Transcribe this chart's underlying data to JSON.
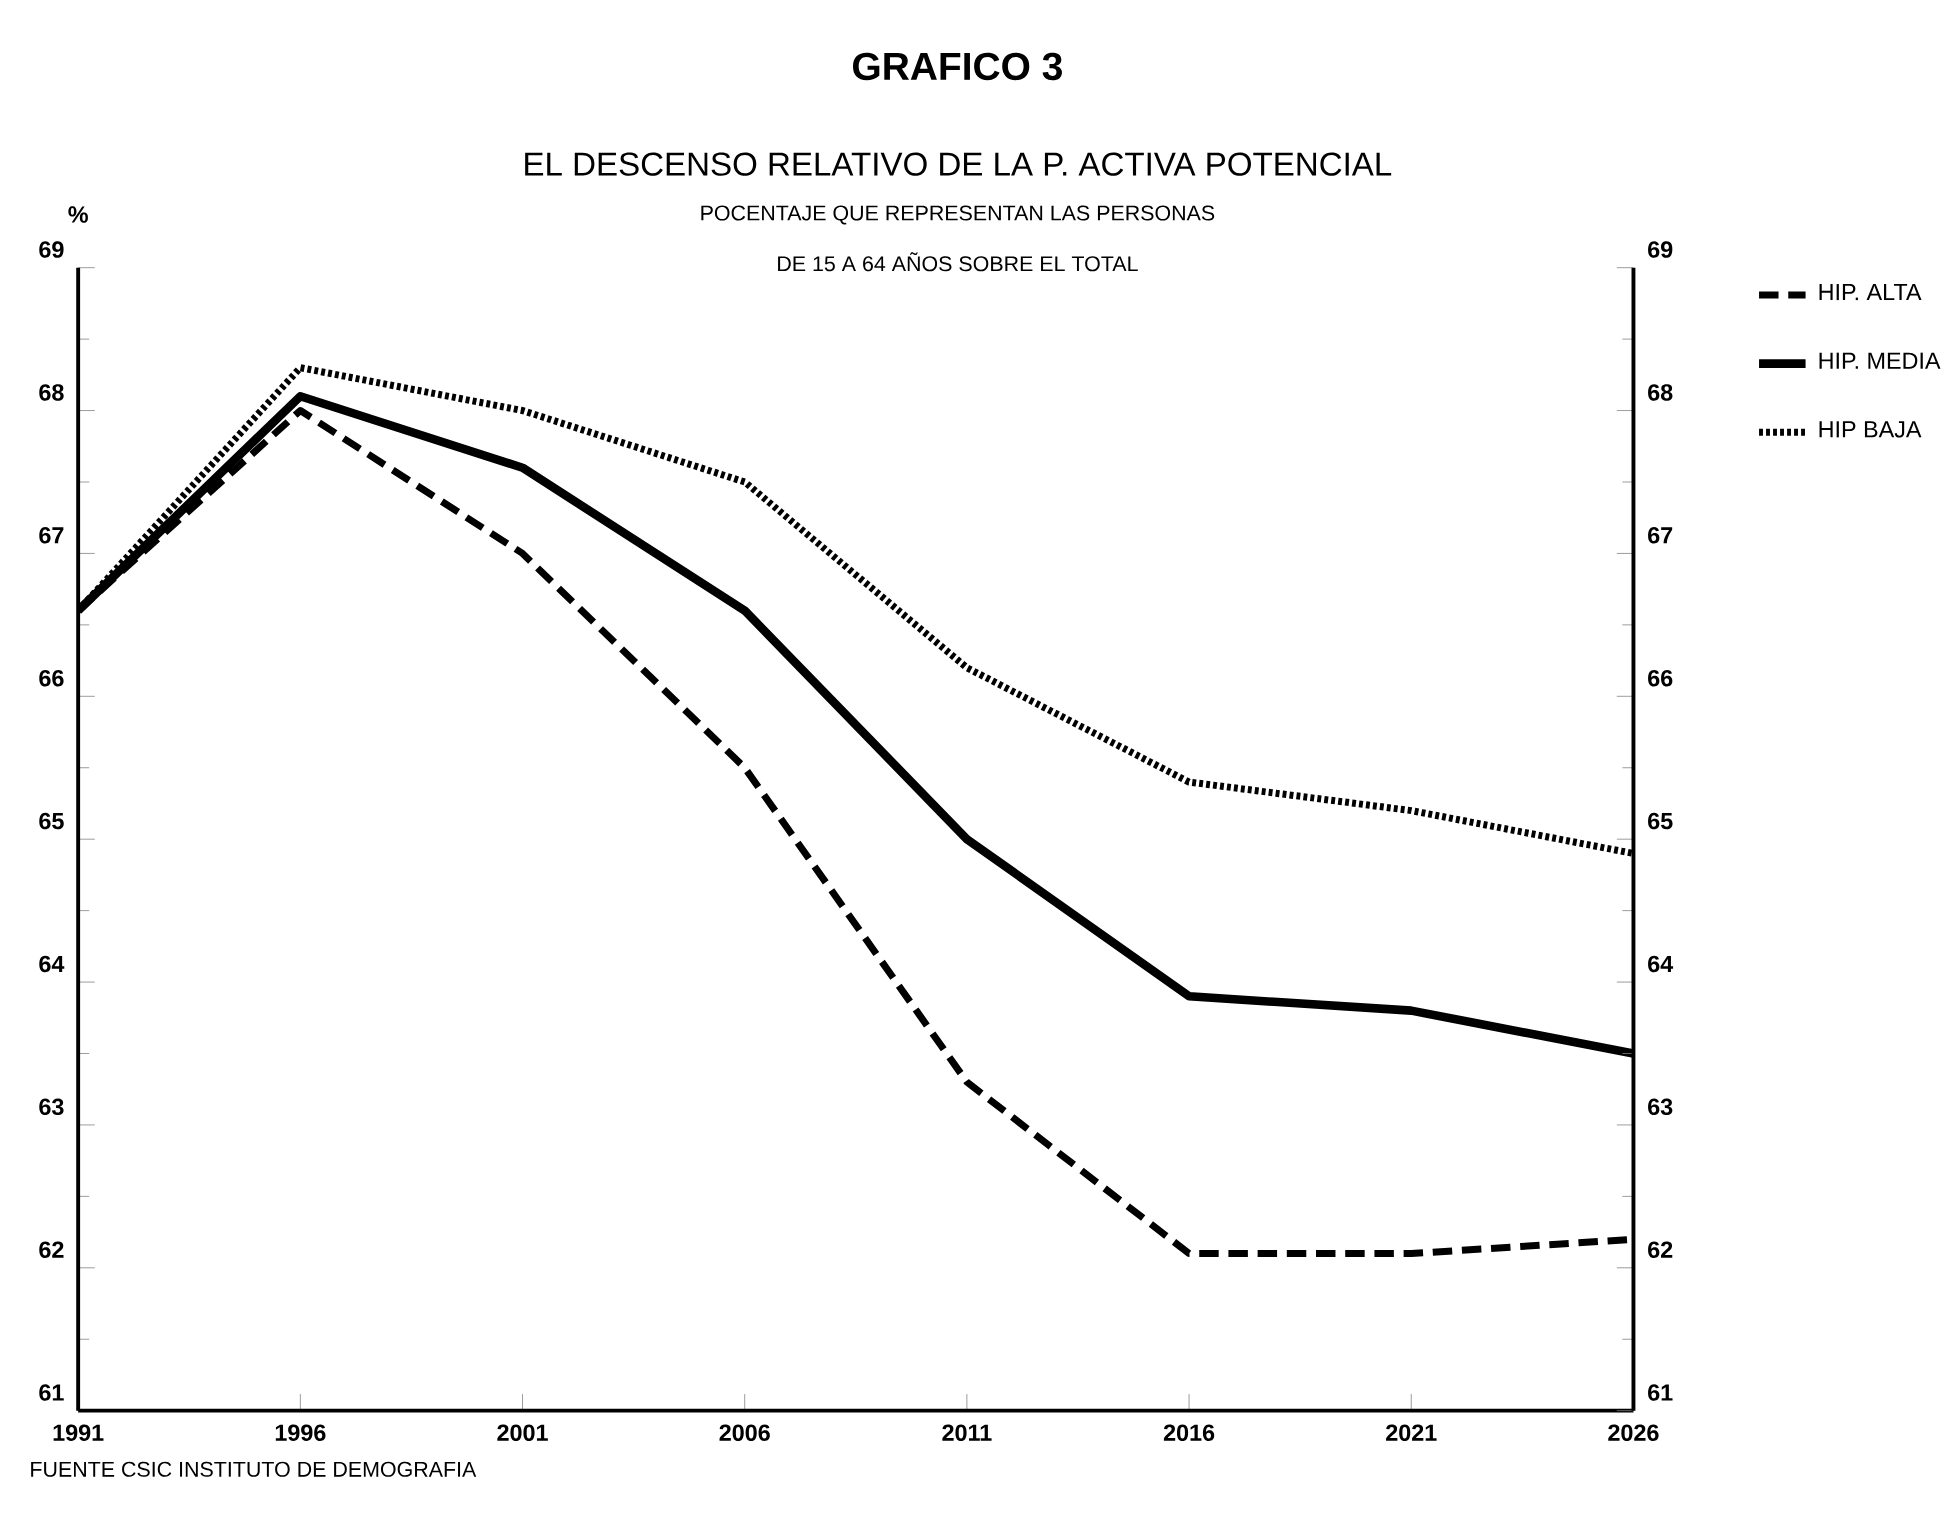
{
  "chart_data": {
    "type": "line",
    "title": "GRAFICO 3",
    "subtitle": "EL DESCENSO RELATIVO DE LA P. ACTIVA POTENCIAL",
    "annotations": [
      "POCENTAJE QUE REPRESENTAN LAS PERSONAS",
      "DE 15 A 64 AÑOS SOBRE EL TOTAL",
      "FUENTE CSIC INSTITUTO DE DEMOGRAFIA"
    ],
    "ylabel": "%",
    "x": [
      1991,
      1996,
      2001,
      2006,
      2011,
      2016,
      2021,
      2026
    ],
    "series": [
      {
        "name": "HIP. ALTA",
        "color": "#000000",
        "line_style": "dashed",
        "values": [
          66.6,
          68.0,
          67.0,
          65.5,
          63.3,
          62.1,
          62.1,
          62.2
        ]
      },
      {
        "name": "HIP. MEDIA",
        "color": "#000000",
        "line_style": "solid",
        "values": [
          66.6,
          68.1,
          67.6,
          66.6,
          65.0,
          63.9,
          63.8,
          63.5
        ]
      },
      {
        "name": "HIP BAJA",
        "color": "#000000",
        "line_style": "dotted",
        "values": [
          66.6,
          68.3,
          68.0,
          67.5,
          66.2,
          65.4,
          65.2,
          64.9
        ]
      }
    ],
    "xlim": [
      1991,
      2026
    ],
    "xticks": [
      1991,
      1996,
      2001,
      2006,
      2011,
      2016,
      2021,
      2026
    ],
    "ylim": [
      61,
      69
    ],
    "yticks": [
      61,
      62,
      63,
      64,
      65,
      66,
      67,
      68,
      69
    ],
    "y2lim": [
      61,
      69
    ],
    "y2ticks": [
      61,
      62,
      63,
      64,
      65,
      66,
      67,
      68,
      69
    ],
    "legend": "right",
    "grid": false
  }
}
